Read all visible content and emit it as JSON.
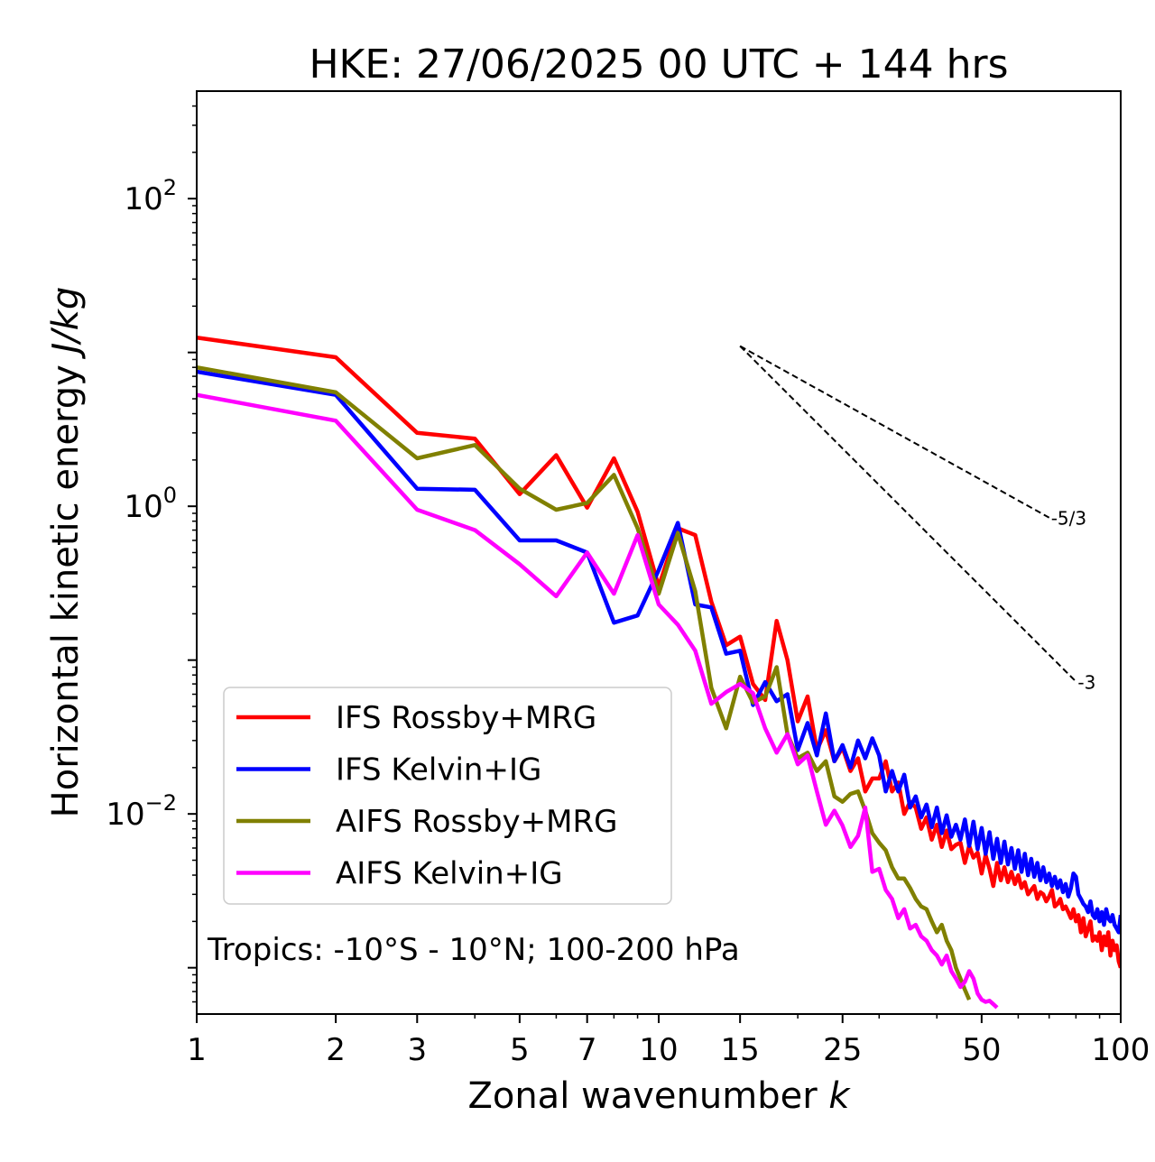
{
  "chart_data": {
    "type": "line",
    "title": "HKE: 27/06/2025 00 UTC + 144 hrs",
    "xlabel": "Zonal wavenumber ",
    "xlabel_italic": "k",
    "ylabel": "Horizontal kinetic energy ",
    "ylabel_italic": "J/kg",
    "xscale": "log",
    "yscale": "log",
    "xlim": [
      1,
      100
    ],
    "ylim": [
      0.0005,
      500
    ],
    "x_ticks": [
      {
        "value": 1,
        "label": "1"
      },
      {
        "value": 2,
        "label": "2"
      },
      {
        "value": 3,
        "label": "3"
      },
      {
        "value": 5,
        "label": "5"
      },
      {
        "value": 7,
        "label": "7"
      },
      {
        "value": 10,
        "label": "10"
      },
      {
        "value": 15,
        "label": "15"
      },
      {
        "value": 25,
        "label": "25"
      },
      {
        "value": 50,
        "label": "50"
      },
      {
        "value": 100,
        "label": "100"
      }
    ],
    "y_ticks": [
      {
        "value": 0.01,
        "base": "10",
        "exp": "−2"
      },
      {
        "value": 1,
        "base": "10",
        "exp": "0"
      },
      {
        "value": 100,
        "base": "10",
        "exp": "2"
      }
    ],
    "annotation": "Tropics: -10°S - 10°N; 100-200 hPa",
    "legend_position": "lower-left",
    "reference_slopes": [
      {
        "label": "-5/3",
        "slope": -1.6667,
        "x_start": 15,
        "y_start": 11,
        "x_end": 70
      },
      {
        "label": "-3",
        "slope": -3,
        "x_start": 15,
        "y_start": 11,
        "x_end": 80
      }
    ],
    "series": [
      {
        "name": "IFS Rossby+MRG",
        "color": "#ff0000",
        "x": [
          1,
          2,
          3,
          4,
          5,
          6,
          7,
          8,
          9,
          10,
          11,
          12,
          13,
          14,
          15,
          16,
          17,
          18,
          19,
          20,
          21,
          22,
          23,
          24,
          25,
          26,
          27,
          28,
          29,
          30,
          31,
          32,
          33,
          34,
          35,
          36,
          37,
          38,
          39,
          40,
          41,
          42,
          43,
          44,
          45,
          46,
          47,
          48,
          49,
          50,
          51,
          52,
          53,
          54,
          55,
          56,
          57,
          58,
          59,
          60,
          61,
          62,
          63,
          64,
          65,
          66,
          67,
          68,
          69,
          70,
          71,
          72,
          73,
          74,
          75,
          76,
          77,
          78,
          79,
          80,
          81,
          82,
          83,
          84,
          85,
          86,
          87,
          88,
          89,
          90,
          91,
          92,
          93,
          94,
          95,
          96,
          97,
          98,
          99,
          100
        ],
        "values": [
          12.5,
          9.3,
          3.0,
          2.75,
          1.2,
          2.15,
          0.98,
          2.05,
          0.92,
          0.3,
          0.72,
          0.65,
          0.24,
          0.125,
          0.142,
          0.07,
          0.055,
          0.18,
          0.1,
          0.04,
          0.058,
          0.026,
          0.035,
          0.022,
          0.027,
          0.019,
          0.023,
          0.014,
          0.017,
          0.017,
          0.022,
          0.014,
          0.016,
          0.01,
          0.012,
          0.011,
          0.008,
          0.0095,
          0.0068,
          0.0085,
          0.0061,
          0.0078,
          0.0059,
          0.0063,
          0.0065,
          0.0048,
          0.0062,
          0.0052,
          0.0056,
          0.0041,
          0.0054,
          0.0044,
          0.0034,
          0.0048,
          0.0037,
          0.0045,
          0.0036,
          0.0042,
          0.0035,
          0.004,
          0.0033,
          0.0036,
          0.003,
          0.0032,
          0.0034,
          0.0028,
          0.0031,
          0.003,
          0.0027,
          0.0029,
          0.0032,
          0.0025,
          0.0026,
          0.0028,
          0.0024,
          0.0025,
          0.0023,
          0.0021,
          0.0024,
          0.002,
          0.0022,
          0.0017,
          0.0021,
          0.0016,
          0.0018,
          0.002,
          0.0015,
          0.0016,
          0.0015,
          0.0017,
          0.0013,
          0.0016,
          0.0014,
          0.0017,
          0.0012,
          0.0015,
          0.0013,
          0.0014,
          0.0011,
          0.001
        ]
      },
      {
        "name": "IFS Kelvin+IG",
        "color": "#0000ff",
        "x": [
          1,
          2,
          3,
          4,
          5,
          6,
          7,
          8,
          9,
          10,
          11,
          12,
          13,
          14,
          15,
          16,
          17,
          18,
          19,
          20,
          21,
          22,
          23,
          24,
          25,
          26,
          27,
          28,
          29,
          30,
          31,
          32,
          33,
          34,
          35,
          36,
          37,
          38,
          39,
          40,
          41,
          42,
          43,
          44,
          45,
          46,
          47,
          48,
          49,
          50,
          51,
          52,
          53,
          54,
          55,
          56,
          57,
          58,
          59,
          60,
          61,
          62,
          63,
          64,
          65,
          66,
          67,
          68,
          69,
          70,
          71,
          72,
          73,
          74,
          75,
          76,
          77,
          78,
          79,
          80,
          81,
          82,
          83,
          84,
          85,
          86,
          87,
          88,
          89,
          90,
          91,
          92,
          93,
          94,
          95,
          96,
          97,
          98,
          99,
          100
        ],
        "values": [
          7.5,
          5.3,
          1.3,
          1.28,
          0.6,
          0.6,
          0.5,
          0.175,
          0.195,
          0.385,
          0.78,
          0.23,
          0.22,
          0.11,
          0.115,
          0.051,
          0.072,
          0.054,
          0.06,
          0.026,
          0.039,
          0.024,
          0.045,
          0.022,
          0.028,
          0.02,
          0.03,
          0.023,
          0.031,
          0.024,
          0.014,
          0.019,
          0.014,
          0.018,
          0.011,
          0.013,
          0.0095,
          0.0115,
          0.0082,
          0.011,
          0.0075,
          0.0098,
          0.0071,
          0.0085,
          0.0068,
          0.0092,
          0.0062,
          0.0089,
          0.0059,
          0.0081,
          0.0055,
          0.0076,
          0.0051,
          0.0069,
          0.0048,
          0.0066,
          0.0047,
          0.006,
          0.0044,
          0.0058,
          0.0042,
          0.0055,
          0.004,
          0.0051,
          0.0039,
          0.0048,
          0.0037,
          0.0045,
          0.0036,
          0.0041,
          0.0034,
          0.0039,
          0.0033,
          0.0037,
          0.0031,
          0.0035,
          0.0029,
          0.0033,
          0.0041,
          0.0039,
          0.003,
          0.0028,
          0.0026,
          0.0025,
          0.0023,
          0.0027,
          0.0022,
          0.0021,
          0.0024,
          0.002,
          0.0023,
          0.0019,
          0.0024,
          0.0021,
          0.002,
          0.0022,
          0.0019,
          0.0018,
          0.0017,
          0.0022
        ]
      },
      {
        "name": "AIFS Rossby+MRG",
        "color": "#808000",
        "x": [
          1,
          2,
          3,
          4,
          5,
          6,
          7,
          8,
          9,
          10,
          11,
          12,
          13,
          14,
          15,
          16,
          17,
          18,
          19,
          20,
          21,
          22,
          23,
          24,
          25,
          26,
          27,
          28,
          29,
          30,
          31,
          32,
          33,
          34,
          35,
          36,
          37,
          38,
          39,
          40,
          41,
          42,
          43,
          44,
          45,
          46,
          47
        ],
        "values": [
          8.0,
          5.5,
          2.05,
          2.5,
          1.3,
          0.95,
          1.05,
          1.6,
          0.72,
          0.27,
          0.67,
          0.28,
          0.066,
          0.036,
          0.078,
          0.053,
          0.058,
          0.09,
          0.033,
          0.023,
          0.025,
          0.019,
          0.022,
          0.013,
          0.012,
          0.0135,
          0.014,
          0.0105,
          0.0075,
          0.0065,
          0.0058,
          0.0045,
          0.0038,
          0.0038,
          0.0033,
          0.0028,
          0.0025,
          0.0024,
          0.002,
          0.0017,
          0.0019,
          0.0015,
          0.0013,
          0.001,
          0.00085,
          0.00072,
          0.00062
        ]
      },
      {
        "name": "AIFS Kelvin+IG",
        "color": "#ff00ff",
        "x": [
          1,
          2,
          3,
          4,
          5,
          6,
          7,
          8,
          9,
          10,
          11,
          12,
          13,
          14,
          15,
          16,
          17,
          18,
          19,
          20,
          21,
          22,
          23,
          24,
          25,
          26,
          27,
          28,
          29,
          30,
          31,
          32,
          33,
          34,
          35,
          36,
          37,
          38,
          39,
          40,
          41,
          42,
          43,
          44,
          45,
          46,
          47,
          48,
          49,
          50,
          51,
          52,
          53,
          54
        ],
        "values": [
          5.3,
          3.6,
          0.95,
          0.7,
          0.42,
          0.26,
          0.5,
          0.27,
          0.65,
          0.23,
          0.17,
          0.115,
          0.052,
          0.062,
          0.07,
          0.061,
          0.036,
          0.025,
          0.033,
          0.021,
          0.024,
          0.014,
          0.0085,
          0.0105,
          0.0084,
          0.0061,
          0.0072,
          0.011,
          0.0042,
          0.0044,
          0.0032,
          0.0028,
          0.0021,
          0.0024,
          0.0018,
          0.0019,
          0.0016,
          0.0015,
          0.0013,
          0.0012,
          0.00105,
          0.0012,
          0.00095,
          0.00085,
          0.00075,
          0.00081,
          0.00095,
          0.00085,
          0.00068,
          0.00062,
          0.0006,
          0.00061,
          0.00058,
          0.00055
        ]
      }
    ]
  }
}
